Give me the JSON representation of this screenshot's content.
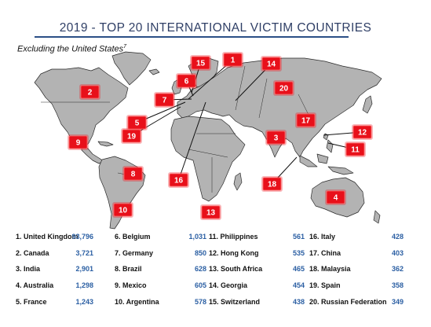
{
  "chart_data": {
    "type": "table",
    "title": "2019 - TOP 20 INTERNATIONAL VICTIM COUNTRIES",
    "subtitle": "Excluding the United States",
    "subtitle_footnote": "7",
    "rows": [
      {
        "rank": 1,
        "label": "1. United Kingdom",
        "value": "93,796"
      },
      {
        "rank": 2,
        "label": "2. Canada",
        "value": "3,721"
      },
      {
        "rank": 3,
        "label": "3. India",
        "value": "2,901"
      },
      {
        "rank": 4,
        "label": "4. Australia",
        "value": "1,298"
      },
      {
        "rank": 5,
        "label": "5. France",
        "value": "1,243"
      },
      {
        "rank": 6,
        "label": "6. Belgium",
        "value": "1,031"
      },
      {
        "rank": 7,
        "label": "7. Germany",
        "value": "850"
      },
      {
        "rank": 8,
        "label": "8. Brazil",
        "value": "628"
      },
      {
        "rank": 9,
        "label": "9. Mexico",
        "value": "605"
      },
      {
        "rank": 10,
        "label": "10. Argentina",
        "value": "578"
      },
      {
        "rank": 11,
        "label": "11. Philippines",
        "value": "561"
      },
      {
        "rank": 12,
        "label": "12. Hong Kong",
        "value": "535"
      },
      {
        "rank": 13,
        "label": "13. South Africa",
        "value": "465"
      },
      {
        "rank": 14,
        "label": "14. Georgia",
        "value": "454"
      },
      {
        "rank": 15,
        "label": "15. Switzerland",
        "value": "438"
      },
      {
        "rank": 16,
        "label": "16. Italy",
        "value": "428"
      },
      {
        "rank": 17,
        "label": "17. China",
        "value": "403"
      },
      {
        "rank": 18,
        "label": "18. Malaysia",
        "value": "362"
      },
      {
        "rank": 19,
        "label": "19. Spain",
        "value": "358"
      },
      {
        "rank": 20,
        "label": "20. Russian Federation",
        "value": "349"
      }
    ],
    "map_markers": [
      "15",
      "1",
      "14",
      "6",
      "2",
      "20",
      "7",
      "5",
      "17",
      "12",
      "19",
      "3",
      "11",
      "9",
      "8",
      "18",
      "16",
      "4",
      "10",
      "13"
    ]
  },
  "colors": {
    "title": "#2f3f66",
    "rule": "#2b4f86",
    "value": "#2b5fa3",
    "marker_fill": "#e8101a",
    "land": "#b3b3b3",
    "border": "#2a2a2a"
  }
}
